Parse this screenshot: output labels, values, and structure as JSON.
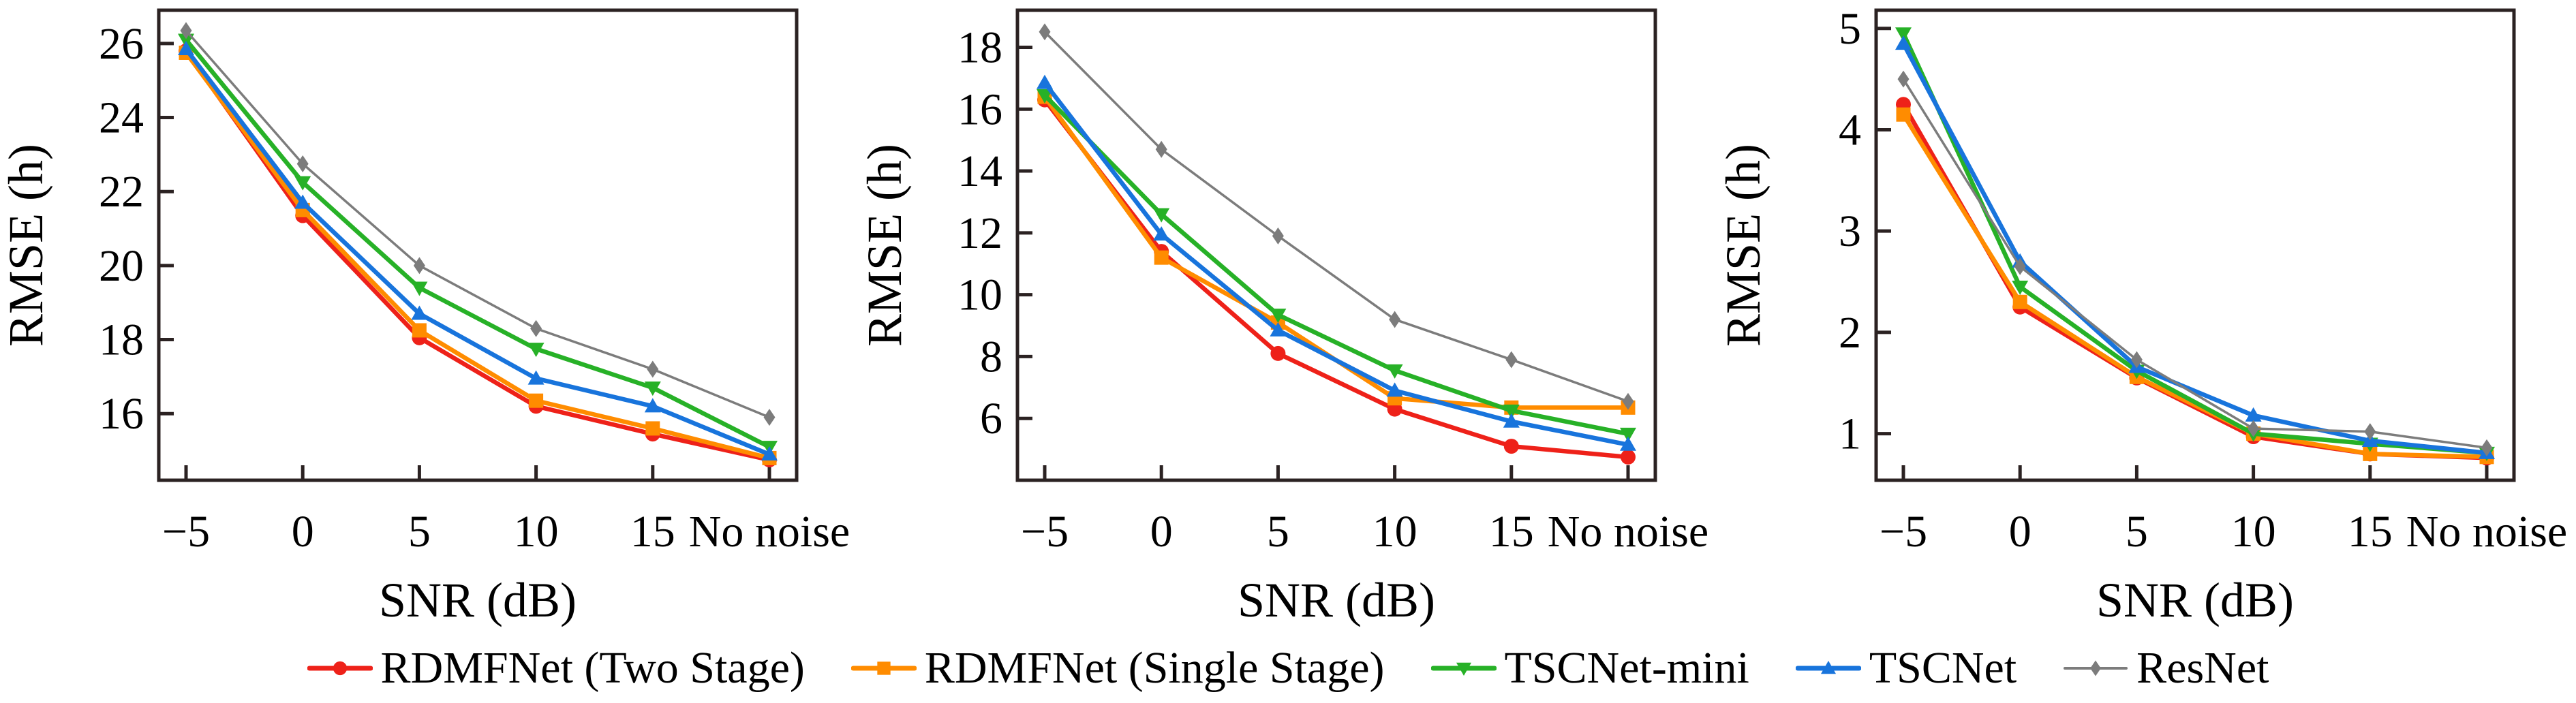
{
  "figure": {
    "background": "#ffffff",
    "axis_color": "#2b2222",
    "text_color": "#000000"
  },
  "legend": {
    "items": [
      {
        "label": "RDMFNet (Two Stage)",
        "color": "#ee2119",
        "marker": "circle"
      },
      {
        "label": "RDMFNet (Single Stage)",
        "color": "#ff8c00",
        "marker": "square"
      },
      {
        "label": "TSCNet-mini",
        "color": "#27b127",
        "marker": "triangle-down"
      },
      {
        "label": "TSCNet",
        "color": "#1874dc",
        "marker": "triangle-up"
      },
      {
        "label": "ResNet",
        "color": "#7c7c7c",
        "marker": "diamond"
      }
    ]
  },
  "chart_data": [
    {
      "type": "line",
      "title": "",
      "xlabel": "SNR (dB)",
      "ylabel": "RMSE (h)",
      "categories": [
        "−5",
        "0",
        "5",
        "10",
        "15",
        "No noise"
      ],
      "ylim": [
        14.2,
        26.9
      ],
      "yticks": [
        16,
        18,
        20,
        22,
        24,
        26
      ],
      "grid": false,
      "legend_position": "figure-bottom",
      "series": [
        {
          "name": "RDMFNet (Two Stage)",
          "values": [
            25.8,
            21.35,
            18.05,
            16.2,
            15.45,
            14.75
          ]
        },
        {
          "name": "RDMFNet (Single Stage)",
          "values": [
            25.75,
            21.5,
            18.25,
            16.35,
            15.6,
            14.8
          ]
        },
        {
          "name": "TSCNet-mini",
          "values": [
            26.1,
            22.25,
            19.4,
            17.75,
            16.7,
            15.1
          ]
        },
        {
          "name": "TSCNet",
          "values": [
            25.85,
            21.7,
            18.7,
            16.95,
            16.2,
            14.9
          ]
        },
        {
          "name": "ResNet",
          "values": [
            26.35,
            22.75,
            20.0,
            18.3,
            17.2,
            15.9
          ]
        }
      ]
    },
    {
      "type": "line",
      "title": "",
      "xlabel": "SNR (dB)",
      "ylabel": "RMSE (h)",
      "categories": [
        "−5",
        "0",
        "5",
        "10",
        "15",
        "No noise"
      ],
      "ylim": [
        4.0,
        19.2
      ],
      "yticks": [
        6,
        8,
        10,
        12,
        14,
        16,
        18
      ],
      "grid": false,
      "legend_position": "figure-bottom",
      "series": [
        {
          "name": "RDMFNet (Two Stage)",
          "values": [
            16.3,
            11.4,
            8.1,
            6.3,
            5.1,
            4.75
          ]
        },
        {
          "name": "RDMFNet (Single Stage)",
          "values": [
            16.4,
            11.2,
            9.1,
            6.65,
            6.35,
            6.35
          ]
        },
        {
          "name": "TSCNet-mini",
          "values": [
            16.45,
            12.6,
            9.35,
            7.55,
            6.25,
            5.5
          ]
        },
        {
          "name": "TSCNet",
          "values": [
            16.85,
            11.95,
            8.85,
            6.9,
            5.9,
            5.15
          ]
        },
        {
          "name": "ResNet",
          "values": [
            18.5,
            14.7,
            11.9,
            9.2,
            7.9,
            6.55
          ]
        }
      ]
    },
    {
      "type": "line",
      "title": "",
      "xlabel": "SNR (dB)",
      "ylabel": "RMSE (h)",
      "categories": [
        "−5",
        "0",
        "5",
        "10",
        "15",
        "No noise"
      ],
      "ylim": [
        0.54,
        5.18
      ],
      "yticks": [
        1,
        2,
        3,
        4,
        5
      ],
      "grid": false,
      "legend_position": "figure-bottom",
      "series": [
        {
          "name": "RDMFNet (Two Stage)",
          "values": [
            4.25,
            2.25,
            1.55,
            0.97,
            0.8,
            0.76
          ]
        },
        {
          "name": "RDMFNet (Single Stage)",
          "values": [
            4.15,
            2.3,
            1.56,
            1.0,
            0.8,
            0.77
          ]
        },
        {
          "name": "TSCNet-mini",
          "values": [
            4.95,
            2.45,
            1.62,
            1.0,
            0.9,
            0.81
          ]
        },
        {
          "name": "TSCNet",
          "values": [
            4.85,
            2.7,
            1.66,
            1.18,
            0.93,
            0.81
          ]
        },
        {
          "name": "ResNet",
          "values": [
            4.5,
            2.65,
            1.73,
            1.05,
            1.02,
            0.86
          ]
        }
      ]
    }
  ]
}
